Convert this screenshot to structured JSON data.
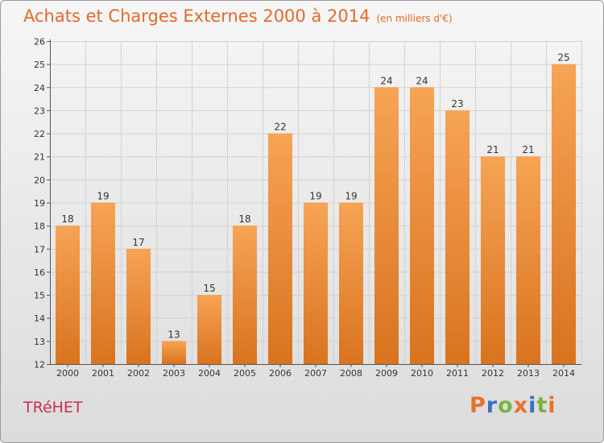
{
  "header": {
    "title": "Achats et Charges Externes 2000 à 2014",
    "unit": "(en milliers d'€)"
  },
  "footer": {
    "town": "TRéHET",
    "brand": "Proxiti",
    "brand_colors": [
      "#e8722a",
      "#3b6fc4",
      "#7cb342",
      "#e8722a",
      "#3b6fc4",
      "#7cb342",
      "#e8722a"
    ]
  },
  "colors": {
    "bar_top": "#f6a455",
    "bar_bottom": "#d9731f",
    "title": "#e26a2c",
    "town": "#c8324f"
  },
  "chart_data": {
    "type": "bar",
    "title": "Achats et Charges Externes 2000 à 2014",
    "subtitle": "(en milliers d'€)",
    "xlabel": "",
    "ylabel": "",
    "categories": [
      "2000",
      "2001",
      "2002",
      "2003",
      "2004",
      "2005",
      "2006",
      "2007",
      "2008",
      "2009",
      "2010",
      "2011",
      "2012",
      "2013",
      "2014"
    ],
    "values": [
      18,
      19,
      17,
      13,
      15,
      18,
      22,
      19,
      19,
      24,
      24,
      23,
      21,
      21,
      25
    ],
    "ylim": [
      12,
      26
    ],
    "yticks": [
      12,
      13,
      14,
      15,
      16,
      17,
      18,
      19,
      20,
      21,
      22,
      23,
      24,
      25,
      26
    ],
    "grid": true,
    "legend": "none"
  }
}
